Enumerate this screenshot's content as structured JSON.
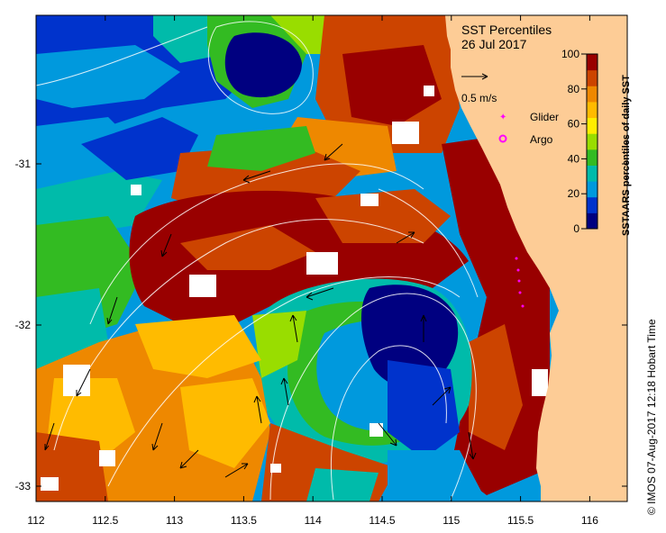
{
  "map": {
    "title": "SST Percentiles",
    "date": "26 Jul 2017",
    "x_ticks": [
      "112",
      "112.5",
      "113",
      "113.5",
      "114",
      "114.5",
      "115",
      "115.5",
      "116"
    ],
    "y_ticks": [
      "-31",
      "-32",
      "-33"
    ],
    "velocity_scale_label": "0.5 m/s",
    "velocity_scale_m_per_s": 0.5,
    "legend_glider": "Glider",
    "legend_argo": "Argo",
    "credit": "© IMOS 07-Aug-2017 12:18 Hobart Time",
    "land_color": "#fdcc96",
    "glider_color": "#ff00ff",
    "argo_color": "#ff00ff"
  },
  "colorbar": {
    "title": "SSTAARS percentiles of daily SST",
    "ticks": [
      "100",
      "80",
      "60",
      "40",
      "20",
      "0"
    ],
    "colors": [
      "#000080",
      "#0033cc",
      "#0099dd",
      "#00bbaa",
      "#33bb22",
      "#99dd00",
      "#ffee00",
      "#ffbb00",
      "#ee8800",
      "#cc4400",
      "#990000"
    ]
  }
}
